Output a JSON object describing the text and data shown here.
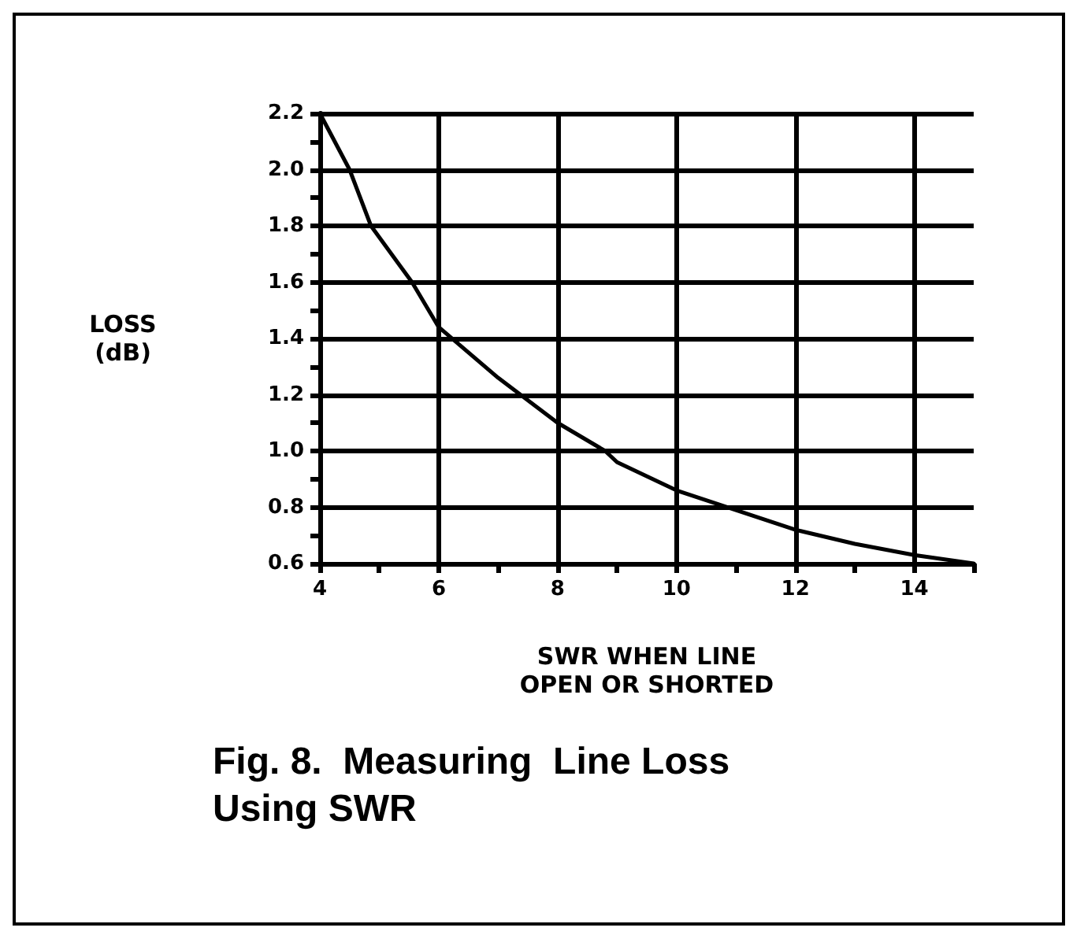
{
  "chart_data": {
    "type": "line",
    "title": "Fig. 8.  Measuring  Line Loss\nUsing SWR",
    "xlabel": "SWR WHEN LINE\nOPEN OR SHORTED",
    "ylabel": "LOSS\n(dB)",
    "x": [
      4,
      4.5,
      4.86,
      5.55,
      6,
      7,
      8,
      8.8,
      9,
      10,
      11,
      12,
      13,
      14,
      15
    ],
    "series": [
      {
        "color": "#000000",
        "values": [
          2.2,
          2.0,
          1.8,
          1.6,
          1.44,
          1.26,
          1.1,
          1.0,
          0.96,
          0.86,
          0.79,
          0.72,
          0.67,
          0.63,
          0.6
        ]
      }
    ],
    "xlim": [
      4,
      15
    ],
    "xticks": [
      4,
      {
        "value": 5,
        "label": null
      },
      6,
      {
        "value": 7,
        "label": null
      },
      8,
      {
        "value": 9,
        "label": null
      },
      10,
      {
        "value": 11,
        "label": null
      },
      12,
      {
        "value": 13,
        "label": null
      },
      14,
      {
        "value": 15,
        "label": null
      }
    ],
    "ylim": [
      0.6,
      2.2
    ],
    "yticks": [
      {
        "value": 0.6,
        "label": "0.6"
      },
      {
        "value": 0.7,
        "label": null
      },
      {
        "value": 0.8,
        "label": "0.8"
      },
      {
        "value": 0.9,
        "label": null
      },
      {
        "value": 1.0,
        "label": "1.0"
      },
      {
        "value": 1.1,
        "label": null
      },
      {
        "value": 1.2,
        "label": "1.2"
      },
      {
        "value": 1.3,
        "label": null
      },
      {
        "value": 1.4,
        "label": "1.4"
      },
      {
        "value": 1.5,
        "label": null
      },
      {
        "value": 1.6,
        "label": "1.6"
      },
      {
        "value": 1.7,
        "label": null
      },
      {
        "value": 1.8,
        "label": "1.8"
      },
      {
        "value": 1.9,
        "label": null
      },
      {
        "value": 2.0,
        "label": "2.0"
      },
      {
        "value": 2.1,
        "label": null
      },
      {
        "value": 2.2,
        "label": "2.2"
      }
    ],
    "grid": true,
    "marker": "none",
    "line_style": "solid"
  }
}
